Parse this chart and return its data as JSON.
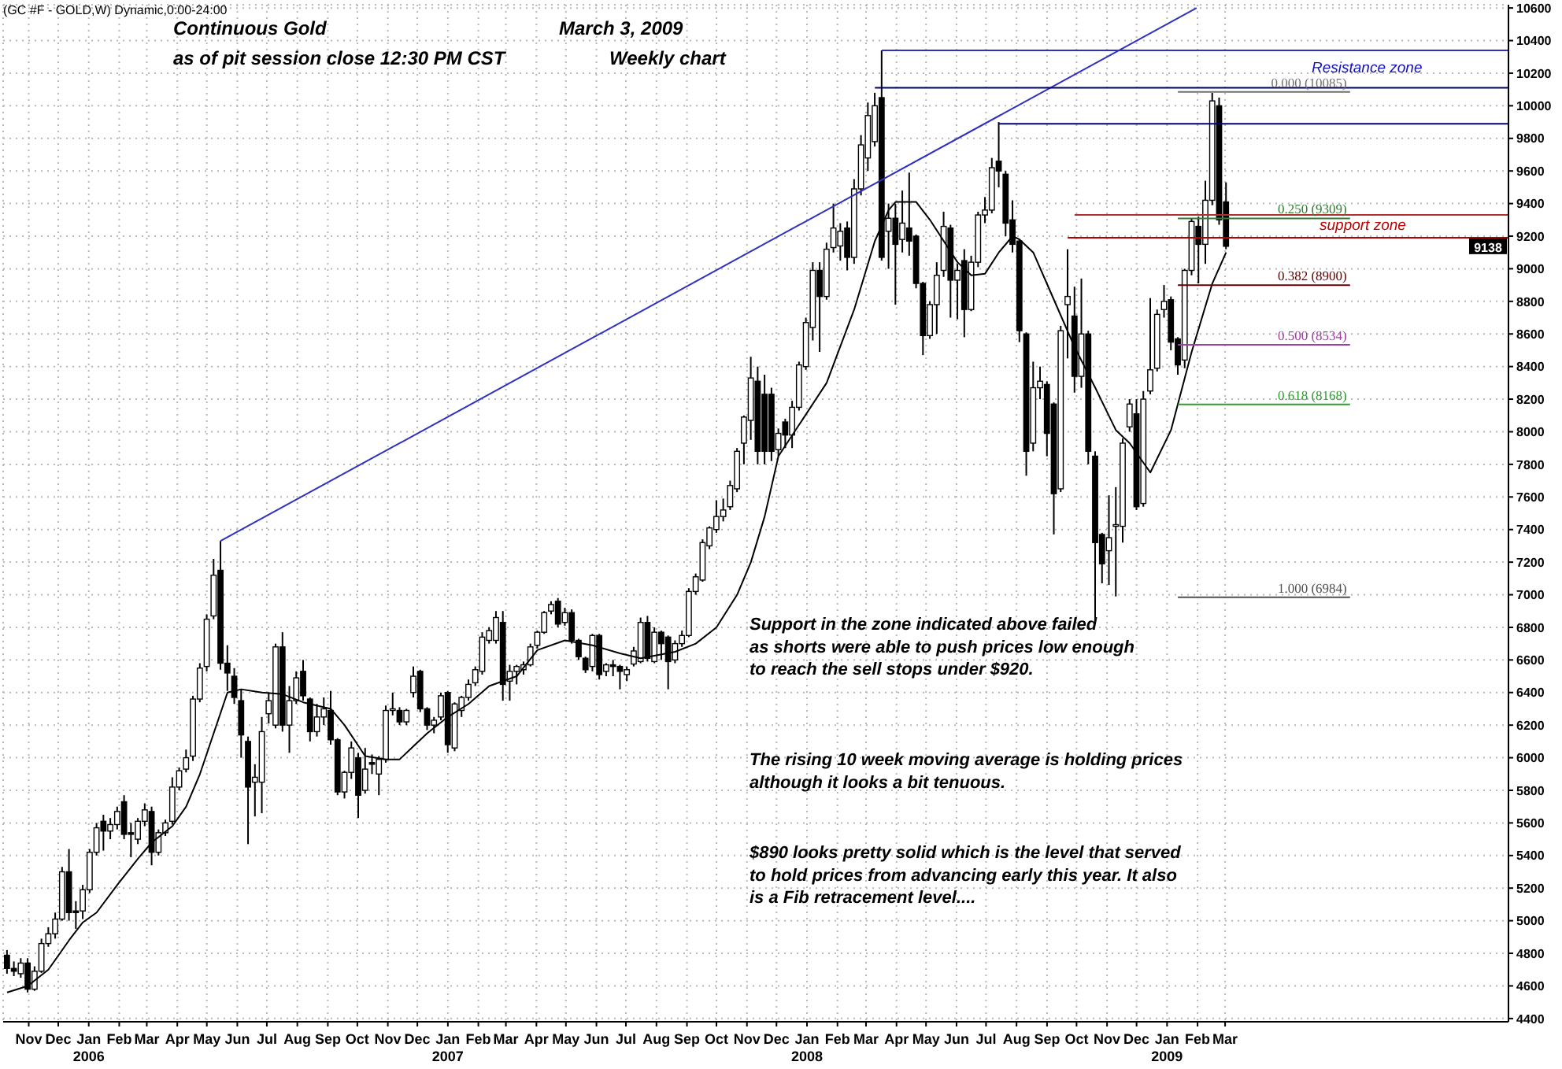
{
  "chart_data": {
    "type": "candlestick",
    "title": "Continuous Gold",
    "annotations": [
      "(GC #F - GOLD,W) Dynamic,0:00-24:00",
      "March 3, 2009",
      "as of pit session close 12:30 PM CST",
      "Weekly chart",
      "Support in the zone indicated above failed\nas shorts were able to push prices low enough\nto reach the sell stops under $920.",
      "The rising 10 week moving average is holding prices\nalthough it looks a bit tenuous.",
      "$890 looks pretty solid which is the level that served\nto hold prices from advancing early this year. It also\nis a Fib retracement level....",
      "Resistance zone",
      "support zone",
      {
        "text": "9138",
        "y": 9138
      }
    ],
    "x": [
      "2005-10-10",
      "2005-10-17",
      "2005-10-24",
      "2005-10-31",
      "2005-11-07",
      "2005-11-14",
      "2005-11-21",
      "2005-11-28",
      "2005-12-05",
      "2005-12-12",
      "2005-12-19",
      "2005-12-26",
      "2006-01-02",
      "2006-01-09",
      "2006-01-16",
      "2006-01-23",
      "2006-01-30",
      "2006-02-06",
      "2006-02-13",
      "2006-02-20",
      "2006-02-27",
      "2006-03-06",
      "2006-03-13",
      "2006-03-20",
      "2006-03-27",
      "2006-04-03",
      "2006-04-10",
      "2006-04-17",
      "2006-04-24",
      "2006-05-01",
      "2006-05-08",
      "2006-05-15",
      "2006-05-22",
      "2006-05-29",
      "2006-06-05",
      "2006-06-12",
      "2006-06-19",
      "2006-06-26",
      "2006-07-03",
      "2006-07-10",
      "2006-07-17",
      "2006-07-24",
      "2006-07-31",
      "2006-08-07",
      "2006-08-14",
      "2006-08-21",
      "2006-08-28",
      "2006-09-04",
      "2006-09-11",
      "2006-09-18",
      "2006-09-25",
      "2006-10-02",
      "2006-10-09",
      "2006-10-16",
      "2006-10-23",
      "2006-10-30",
      "2006-11-06",
      "2006-11-13",
      "2006-11-20",
      "2006-11-27",
      "2006-12-04",
      "2006-12-11",
      "2006-12-18",
      "2006-12-25",
      "2007-01-01",
      "2007-01-08",
      "2007-01-15",
      "2007-01-22",
      "2007-01-29",
      "2007-02-05",
      "2007-02-12",
      "2007-02-19",
      "2007-02-26",
      "2007-03-05",
      "2007-03-12",
      "2007-03-19",
      "2007-03-26",
      "2007-04-02",
      "2007-04-09",
      "2007-04-16",
      "2007-04-23",
      "2007-04-30",
      "2007-05-07",
      "2007-05-14",
      "2007-05-21",
      "2007-05-28",
      "2007-06-04",
      "2007-06-11",
      "2007-06-18",
      "2007-06-25",
      "2007-07-02",
      "2007-07-09",
      "2007-07-16",
      "2007-07-23",
      "2007-07-30",
      "2007-08-06",
      "2007-08-13",
      "2007-08-20",
      "2007-08-27",
      "2007-09-03",
      "2007-09-10",
      "2007-09-17",
      "2007-09-24",
      "2007-10-01",
      "2007-10-08",
      "2007-10-15",
      "2007-10-22",
      "2007-10-29",
      "2007-11-05",
      "2007-11-12",
      "2007-11-19",
      "2007-11-26",
      "2007-12-03",
      "2007-12-10",
      "2007-12-17",
      "2007-12-24",
      "2007-12-31",
      "2008-01-07",
      "2008-01-14",
      "2008-01-21",
      "2008-01-28",
      "2008-02-04",
      "2008-02-11",
      "2008-02-18",
      "2008-02-25",
      "2008-03-03",
      "2008-03-10",
      "2008-03-17",
      "2008-03-24",
      "2008-03-31",
      "2008-04-07",
      "2008-04-14",
      "2008-04-21",
      "2008-04-28",
      "2008-05-05",
      "2008-05-12",
      "2008-05-19",
      "2008-05-26",
      "2008-06-02",
      "2008-06-09",
      "2008-06-16",
      "2008-06-23",
      "2008-06-30",
      "2008-07-07",
      "2008-07-14",
      "2008-07-21",
      "2008-07-28",
      "2008-08-04",
      "2008-08-11",
      "2008-08-18",
      "2008-08-25",
      "2008-09-01",
      "2008-09-08",
      "2008-09-15",
      "2008-09-22",
      "2008-09-29",
      "2008-10-06",
      "2008-10-13",
      "2008-10-20",
      "2008-10-27",
      "2008-11-03",
      "2008-11-10",
      "2008-11-17",
      "2008-11-24",
      "2008-12-01",
      "2008-12-08",
      "2008-12-15",
      "2008-12-22",
      "2008-12-29",
      "2009-01-05",
      "2009-01-12",
      "2009-01-19",
      "2009-01-26",
      "2009-02-02",
      "2009-02-09",
      "2009-02-16",
      "2009-02-23",
      "2009-03-02"
    ],
    "ohlc": [
      [
        4788,
        4820,
        4675,
        4707
      ],
      [
        4707,
        4750,
        4660,
        4690
      ],
      [
        4675,
        4770,
        4650,
        4740
      ],
      [
        4740,
        4770,
        4560,
        4580
      ],
      [
        4580,
        4720,
        4570,
        4690
      ],
      [
        4690,
        4890,
        4680,
        4860
      ],
      [
        4860,
        4960,
        4840,
        4920
      ],
      [
        4920,
        5050,
        4890,
        5010
      ],
      [
        5010,
        5330,
        5000,
        5300
      ],
      [
        5300,
        5440,
        5000,
        5050
      ],
      [
        5060,
        5120,
        4950,
        5050
      ],
      [
        5060,
        5220,
        5010,
        5190
      ],
      [
        5190,
        5440,
        5170,
        5420
      ],
      [
        5420,
        5600,
        5400,
        5570
      ],
      [
        5610,
        5650,
        5430,
        5550
      ],
      [
        5550,
        5630,
        5500,
        5590
      ],
      [
        5590,
        5700,
        5560,
        5670
      ],
      [
        5730,
        5770,
        5500,
        5530
      ],
      [
        5540,
        5600,
        5390,
        5530
      ],
      [
        5500,
        5630,
        5470,
        5610
      ],
      [
        5610,
        5720,
        5580,
        5680
      ],
      [
        5670,
        5700,
        5340,
        5420
      ],
      [
        5420,
        5560,
        5400,
        5540
      ],
      [
        5540,
        5620,
        5520,
        5600
      ],
      [
        5610,
        5880,
        5590,
        5820
      ],
      [
        5820,
        5940,
        5800,
        5920
      ],
      [
        5930,
        6050,
        5910,
        6000
      ],
      [
        6010,
        6380,
        5980,
        6360
      ],
      [
        6360,
        6580,
        6340,
        6550
      ],
      [
        6560,
        6880,
        6530,
        6850
      ],
      [
        6870,
        7220,
        6850,
        7120
      ],
      [
        7150,
        7330,
        6540,
        6580
      ],
      [
        6580,
        6690,
        6410,
        6520
      ],
      [
        6500,
        6550,
        6330,
        6370
      ],
      [
        6350,
        6420,
        6000,
        6140
      ],
      [
        6100,
        6130,
        5470,
        5820
      ],
      [
        5850,
        5960,
        5640,
        5880
      ],
      [
        5850,
        6250,
        5660,
        6160
      ],
      [
        6270,
        6400,
        6210,
        6350
      ],
      [
        6200,
        6700,
        6180,
        6680
      ],
      [
        6680,
        6770,
        6160,
        6200
      ],
      [
        6200,
        6440,
        6030,
        6350
      ],
      [
        6350,
        6530,
        6330,
        6490
      ],
      [
        6530,
        6600,
        6350,
        6380
      ],
      [
        6360,
        6370,
        6100,
        6160
      ],
      [
        6160,
        6330,
        6130,
        6250
      ],
      [
        6250,
        6370,
        6200,
        6300
      ],
      [
        6290,
        6410,
        6080,
        6110
      ],
      [
        6110,
        6120,
        5770,
        5790
      ],
      [
        5790,
        5920,
        5750,
        5910
      ],
      [
        5910,
        6100,
        5870,
        6060
      ],
      [
        6000,
        6030,
        5630,
        5770
      ],
      [
        5800,
        6060,
        5780,
        5930
      ],
      [
        5970,
        6020,
        5900,
        5960
      ],
      [
        5900,
        6010,
        5770,
        5990
      ],
      [
        5990,
        6320,
        5970,
        6290
      ],
      [
        6290,
        6400,
        6260,
        6300
      ],
      [
        6290,
        6310,
        6200,
        6220
      ],
      [
        6220,
        6300,
        6200,
        6290
      ],
      [
        6400,
        6560,
        6370,
        6500
      ],
      [
        6530,
        6540,
        6280,
        6300
      ],
      [
        6300,
        6310,
        6170,
        6200
      ],
      [
        6200,
        6250,
        6150,
        6230
      ],
      [
        6250,
        6400,
        6230,
        6380
      ],
      [
        6400,
        6410,
        6030,
        6080
      ],
      [
        6060,
        6340,
        6040,
        6330
      ],
      [
        6290,
        6380,
        6250,
        6370
      ],
      [
        6370,
        6480,
        6350,
        6450
      ],
      [
        6460,
        6560,
        6440,
        6540
      ],
      [
        6530,
        6770,
        6510,
        6740
      ],
      [
        6720,
        6800,
        6700,
        6780
      ],
      [
        6720,
        6900,
        6700,
        6860
      ],
      [
        6830,
        6900,
        6350,
        6450
      ],
      [
        6470,
        6570,
        6350,
        6530
      ],
      [
        6530,
        6570,
        6450,
        6560
      ],
      [
        6540,
        6590,
        6510,
        6570
      ],
      [
        6570,
        6700,
        6560,
        6680
      ],
      [
        6690,
        6780,
        6670,
        6770
      ],
      [
        6770,
        6900,
        6760,
        6890
      ],
      [
        6900,
        6960,
        6880,
        6940
      ],
      [
        6960,
        6980,
        6800,
        6820
      ],
      [
        6830,
        6920,
        6810,
        6890
      ],
      [
        6890,
        6910,
        6700,
        6720
      ],
      [
        6720,
        6730,
        6600,
        6620
      ],
      [
        6610,
        6620,
        6520,
        6540
      ],
      [
        6560,
        6760,
        6530,
        6750
      ],
      [
        6750,
        6760,
        6480,
        6510
      ],
      [
        6530,
        6580,
        6500,
        6570
      ],
      [
        6570,
        6600,
        6500,
        6560
      ],
      [
        6560,
        6570,
        6420,
        6530
      ],
      [
        6510,
        6560,
        6470,
        6540
      ],
      [
        6575,
        6680,
        6560,
        6655
      ],
      [
        6590,
        6860,
        6580,
        6830
      ],
      [
        6830,
        6870,
        6590,
        6610
      ],
      [
        6590,
        6800,
        6580,
        6770
      ],
      [
        6770,
        6780,
        6600,
        6700
      ],
      [
        6740,
        6750,
        6420,
        6590
      ],
      [
        6600,
        6720,
        6580,
        6700
      ],
      [
        6700,
        6780,
        6680,
        6750
      ],
      [
        6750,
        7040,
        6740,
        7020
      ],
      [
        7020,
        7130,
        7000,
        7110
      ],
      [
        7090,
        7340,
        7080,
        7320
      ],
      [
        7300,
        7420,
        7280,
        7410
      ],
      [
        7400,
        7580,
        7380,
        7480
      ],
      [
        7480,
        7590,
        7450,
        7520
      ],
      [
        7540,
        7700,
        7520,
        7670
      ],
      [
        7650,
        7900,
        7630,
        7880
      ],
      [
        7930,
        8100,
        7800,
        8090
      ],
      [
        8070,
        8460,
        7950,
        8330
      ],
      [
        8310,
        8400,
        7800,
        7880
      ],
      [
        8230,
        8350,
        7800,
        7880
      ],
      [
        8230,
        8270,
        7820,
        7880
      ],
      [
        7890,
        8020,
        7850,
        7990
      ],
      [
        8060,
        8080,
        7900,
        7980
      ],
      [
        7980,
        8190,
        7900,
        8150
      ],
      [
        8150,
        8430,
        8130,
        8410
      ],
      [
        8400,
        8700,
        8380,
        8670
      ],
      [
        8640,
        9040,
        8560,
        8990
      ],
      [
        8990,
        9040,
        8490,
        8830
      ],
      [
        8830,
        9160,
        8810,
        9120
      ],
      [
        9130,
        9400,
        9100,
        9250
      ],
      [
        9140,
        9280,
        9050,
        9230
      ],
      [
        9250,
        9290,
        8990,
        9070
      ],
      [
        9070,
        9550,
        9030,
        9490
      ],
      [
        9490,
        9820,
        9450,
        9760
      ],
      [
        9680,
        10020,
        9600,
        9940
      ],
      [
        9780,
        10080,
        9750,
        10000
      ],
      [
        10050,
        10340,
        9050,
        9070
      ],
      [
        9230,
        9400,
        9000,
        9310
      ],
      [
        9310,
        9400,
        8780,
        9150
      ],
      [
        9180,
        9480,
        9100,
        9280
      ],
      [
        9250,
        9590,
        9080,
        9170
      ],
      [
        9200,
        9210,
        8880,
        8910
      ],
      [
        8910,
        8920,
        8470,
        8590
      ],
      [
        8590,
        8800,
        8570,
        8780
      ],
      [
        8780,
        9040,
        8600,
        8960
      ],
      [
        8990,
        9350,
        8950,
        9260
      ],
      [
        9250,
        9270,
        8700,
        8930
      ],
      [
        8930,
        9030,
        8690,
        8990
      ],
      [
        9050,
        9120,
        8580,
        8750
      ],
      [
        8750,
        9080,
        8740,
        9040
      ],
      [
        9040,
        9350,
        9010,
        9330
      ],
      [
        9330,
        9440,
        9280,
        9360
      ],
      [
        9360,
        9680,
        9340,
        9620
      ],
      [
        9660,
        9900,
        9500,
        9600
      ],
      [
        9580,
        9600,
        9200,
        9280
      ],
      [
        9300,
        9420,
        9100,
        9150
      ],
      [
        9170,
        9180,
        8550,
        8620
      ],
      [
        8600,
        8610,
        7730,
        7880
      ],
      [
        7930,
        8430,
        7880,
        8270
      ],
      [
        8270,
        8400,
        8200,
        8310
      ],
      [
        8290,
        8310,
        7850,
        7990
      ],
      [
        8170,
        8180,
        7370,
        7620
      ],
      [
        7650,
        8650,
        7630,
        8620
      ],
      [
        8780,
        9120,
        8450,
        8830
      ],
      [
        8710,
        8890,
        8240,
        8340
      ],
      [
        8340,
        8940,
        8270,
        8600
      ],
      [
        8600,
        8620,
        7800,
        7880
      ],
      [
        7850,
        7880,
        6820,
        7320
      ],
      [
        7370,
        7380,
        7070,
        7190
      ],
      [
        7270,
        7610,
        7060,
        7350
      ],
      [
        7420,
        7660,
        6990,
        7430
      ],
      [
        7420,
        7960,
        7320,
        7930
      ],
      [
        8030,
        8200,
        8000,
        8170
      ],
      [
        8110,
        8200,
        7520,
        7540
      ],
      [
        7560,
        8250,
        7540,
        8200
      ],
      [
        8250,
        8820,
        8230,
        8380
      ],
      [
        8390,
        8750,
        8370,
        8720
      ],
      [
        8750,
        8900,
        8700,
        8800
      ],
      [
        8810,
        8830,
        8500,
        8550
      ],
      [
        8570,
        8580,
        8350,
        8410
      ],
      [
        8440,
        9000,
        8390,
        8990
      ],
      [
        8990,
        9310,
        8960,
        9290
      ],
      [
        9260,
        9320,
        8910,
        9150
      ],
      [
        9150,
        9540,
        9030,
        9420
      ],
      [
        9420,
        10080,
        9390,
        10030
      ],
      [
        10000,
        10050,
        9270,
        9300
      ],
      [
        9410,
        9530,
        9120,
        9138
      ]
    ],
    "series": [
      {
        "type": "line",
        "color": "#000000",
        "x": [
          "2005-10-10",
          "2005-10-31",
          "2005-11-21",
          "2005-12-12",
          "2005-12-26",
          "2006-01-09",
          "2006-01-30",
          "2006-02-20",
          "2006-03-06",
          "2006-03-27",
          "2006-04-10",
          "2006-04-24",
          "2006-05-08",
          "2006-05-22",
          "2006-06-05",
          "2006-06-26",
          "2006-07-17",
          "2006-08-07",
          "2006-09-04",
          "2006-09-18",
          "2006-10-09",
          "2006-10-30",
          "2006-11-13",
          "2006-11-27",
          "2006-12-11",
          "2007-01-01",
          "2007-01-22",
          "2007-02-12",
          "2007-03-12",
          "2007-04-02",
          "2007-04-30",
          "2007-05-28",
          "2007-06-25",
          "2007-07-16",
          "2007-08-20",
          "2007-09-10",
          "2007-10-01",
          "2007-10-22",
          "2007-11-05",
          "2007-11-19",
          "2007-12-03",
          "2008-01-21",
          "2008-02-18",
          "2008-03-10",
          "2008-03-24",
          "2008-03-31",
          "2008-04-21",
          "2008-05-05",
          "2008-06-02",
          "2008-06-16",
          "2008-06-30",
          "2008-07-14",
          "2008-07-28",
          "2008-08-04",
          "2008-08-18",
          "2008-09-08",
          "2008-09-29",
          "2008-10-20",
          "2008-11-10",
          "2008-11-24",
          "2008-12-15",
          "2009-01-05",
          "2009-01-26",
          "2009-02-16",
          "2009-03-02"
        ],
        "values": [
          4560,
          4600,
          4700,
          4880,
          4990,
          5050,
          5220,
          5380,
          5480,
          5580,
          5700,
          5900,
          6150,
          6400,
          6420,
          6400,
          6390,
          6340,
          6300,
          6200,
          6010,
          5990,
          5990,
          6070,
          6150,
          6250,
          6330,
          6440,
          6500,
          6660,
          6720,
          6690,
          6640,
          6610,
          6650,
          6700,
          6800,
          7000,
          7200,
          7480,
          7850,
          8300,
          8750,
          9170,
          9360,
          9410,
          9410,
          9300,
          9040,
          8960,
          8970,
          9100,
          9200,
          9180,
          9100,
          8810,
          8520,
          8270,
          8010,
          7930,
          7750,
          8010,
          8490,
          8910,
          9100
        ]
      },
      {
        "type": "line",
        "color": "#3030c0",
        "x": [
          "2006-05-15",
          "2009-01-31"
        ],
        "values": [
          7330,
          10600
        ]
      },
      {
        "type": "line",
        "color": "#3030c0",
        "x": [
          "2008-03-17",
          "2009-12-14"
        ],
        "values": [
          10340,
          10340
        ]
      },
      {
        "type": "line",
        "color": "#000070",
        "x": [
          "2008-03-10",
          "2009-12-14"
        ],
        "values": [
          10110,
          10110
        ]
      },
      {
        "type": "line",
        "color": "#000070",
        "x": [
          "2008-07-14",
          "2009-12-14"
        ],
        "values": [
          9890,
          9890
        ]
      },
      {
        "type": "line",
        "color": "#b03030",
        "x": [
          "2008-09-29",
          "2009-12-14"
        ],
        "values": [
          9330,
          9330
        ]
      },
      {
        "type": "line",
        "color": "#b00000",
        "x": [
          "2008-09-22",
          "2009-12-14"
        ],
        "values": [
          9190,
          9190
        ]
      },
      {
        "type": "line",
        "name": "0.000 (10085)",
        "color": "#707070",
        "x": [
          "2009-01-12",
          "2009-07-06"
        ],
        "values": [
          10085,
          10085
        ]
      },
      {
        "type": "line",
        "name": "0.250 (9309)",
        "color": "#2e7d32",
        "x": [
          "2009-01-12",
          "2009-07-06"
        ],
        "values": [
          9309,
          9309
        ]
      },
      {
        "type": "line",
        "name": "0.382 (8900)",
        "color": "#600000",
        "x": [
          "2009-01-12",
          "2009-07-06"
        ],
        "values": [
          8900,
          8900
        ]
      },
      {
        "type": "line",
        "name": "0.500 (8534)",
        "color": "#a040a0",
        "x": [
          "2009-01-12",
          "2009-07-06"
        ],
        "values": [
          8534,
          8534
        ]
      },
      {
        "type": "line",
        "name": "0.618 (8168)",
        "color": "#2e9e2e",
        "x": [
          "2009-01-12",
          "2009-07-06"
        ],
        "values": [
          8168,
          8168
        ]
      },
      {
        "type": "line",
        "name": "1.000 (6984)",
        "color": "#505050",
        "x": [
          "2009-01-12",
          "2009-07-06"
        ],
        "values": [
          6984,
          6984
        ]
      }
    ],
    "marker": "none",
    "line_style": "solid",
    "grid": true,
    "xlim": [
      "2005-10-06",
      "2009-12-14"
    ],
    "xticks": [
      {
        "value": "2005-11-01",
        "label": "Nov"
      },
      {
        "value": "2005-12-01",
        "label": "Dec"
      },
      {
        "value": "2006-01-01",
        "label": "Jan\n2006"
      },
      {
        "value": "2006-02-01",
        "label": "Feb"
      },
      {
        "value": "2006-03-01",
        "label": "Mar"
      },
      {
        "value": "2006-04-01",
        "label": "Apr"
      },
      {
        "value": "2006-05-01",
        "label": "May"
      },
      {
        "value": "2006-06-01",
        "label": "Jun"
      },
      {
        "value": "2006-07-01",
        "label": "Jul"
      },
      {
        "value": "2006-08-01",
        "label": "Aug"
      },
      {
        "value": "2006-09-01",
        "label": "Sep"
      },
      {
        "value": "2006-10-01",
        "label": "Oct"
      },
      {
        "value": "2006-11-01",
        "label": "Nov"
      },
      {
        "value": "2006-12-01",
        "label": "Dec"
      },
      {
        "value": "2007-01-01",
        "label": "Jan\n2007"
      },
      {
        "value": "2007-02-01",
        "label": "Feb"
      },
      {
        "value": "2007-03-01",
        "label": "Mar"
      },
      {
        "value": "2007-04-01",
        "label": "Apr"
      },
      {
        "value": "2007-05-01",
        "label": "May"
      },
      {
        "value": "2007-06-01",
        "label": "Jun"
      },
      {
        "value": "2007-07-01",
        "label": "Jul"
      },
      {
        "value": "2007-08-01",
        "label": "Aug"
      },
      {
        "value": "2007-09-01",
        "label": "Sep"
      },
      {
        "value": "2007-10-01",
        "label": "Oct"
      },
      {
        "value": "2007-11-01",
        "label": "Nov"
      },
      {
        "value": "2007-12-01",
        "label": "Dec"
      },
      {
        "value": "2008-01-01",
        "label": "Jan\n2008"
      },
      {
        "value": "2008-02-01",
        "label": "Feb"
      },
      {
        "value": "2008-03-01",
        "label": "Mar"
      },
      {
        "value": "2008-04-01",
        "label": "Apr"
      },
      {
        "value": "2008-05-01",
        "label": "May"
      },
      {
        "value": "2008-06-01",
        "label": "Jun"
      },
      {
        "value": "2008-07-01",
        "label": "Jul"
      },
      {
        "value": "2008-08-01",
        "label": "Aug"
      },
      {
        "value": "2008-09-01",
        "label": "Sep"
      },
      {
        "value": "2008-10-01",
        "label": "Oct"
      },
      {
        "value": "2008-11-01",
        "label": "Nov"
      },
      {
        "value": "2008-12-01",
        "label": "Dec"
      },
      {
        "value": "2009-01-01",
        "label": "Jan\n2009"
      },
      {
        "value": "2009-02-01",
        "label": "Feb"
      },
      {
        "value": "2009-03-01",
        "label": "Mar"
      }
    ],
    "ylim": [
      4380,
      10620
    ],
    "yticks": [
      4400,
      4600,
      4800,
      5000,
      5200,
      5400,
      5600,
      5800,
      6000,
      6200,
      6400,
      6600,
      6800,
      7000,
      7200,
      7400,
      7600,
      7800,
      8000,
      8200,
      8400,
      8600,
      8800,
      9000,
      9200,
      9400,
      9600,
      9800,
      10000,
      10200,
      10400,
      10600
    ]
  }
}
